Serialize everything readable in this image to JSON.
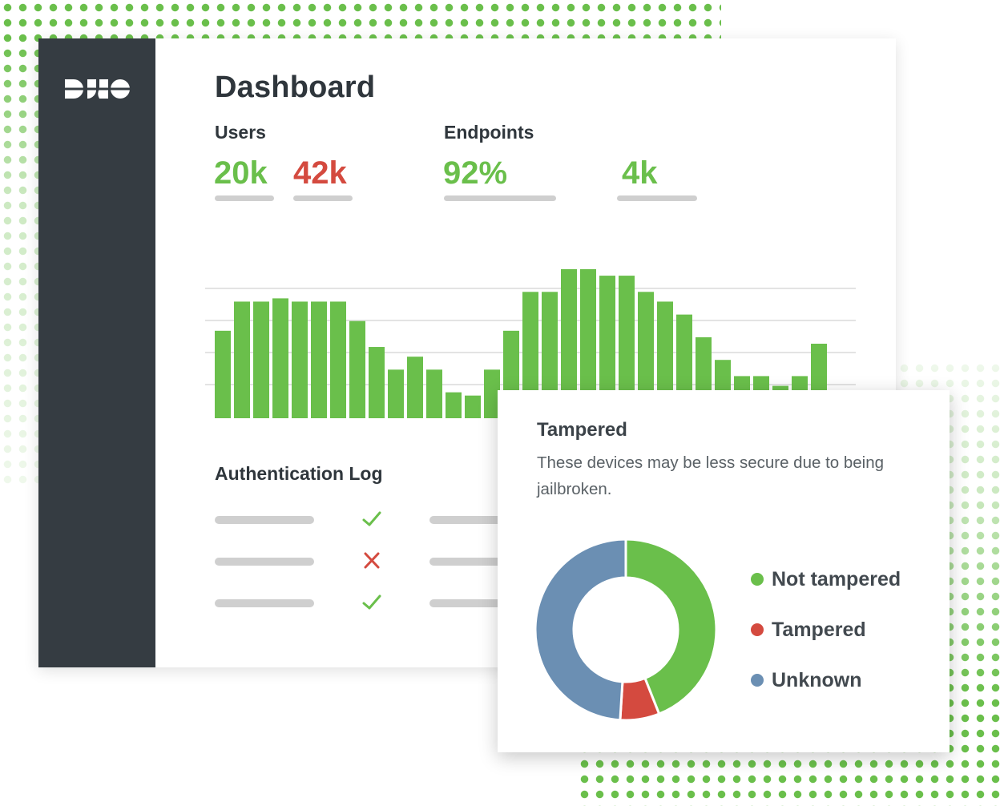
{
  "colors": {
    "green": "#6abf4b",
    "red": "#d44a3f",
    "blue": "#6b8fb3",
    "sidebar": "#353c42",
    "placeholder": "#cfcfcf"
  },
  "logo": {
    "text": "DUO",
    "icon": "duo-logo"
  },
  "dashboard": {
    "title": "Dashboard",
    "users": {
      "label": "Users",
      "value_green": "20k",
      "value_red": "42k"
    },
    "endpoints": {
      "label": "Endpoints",
      "value_primary": "92%",
      "value_secondary": "4k"
    }
  },
  "chart_data": [
    {
      "type": "bar",
      "values": [
        27,
        36,
        36,
        37,
        36,
        36,
        36,
        30,
        22,
        15,
        19,
        15,
        8,
        7,
        15,
        27,
        39,
        39,
        46,
        46,
        44,
        44,
        39,
        36,
        32,
        25,
        18,
        13,
        13,
        10,
        13,
        23
      ],
      "ylim": [
        0,
        46
      ],
      "grid": true
    },
    {
      "type": "pie",
      "labels": [
        "Not tampered",
        "Tampered",
        "Unknown"
      ],
      "values": [
        44,
        7,
        49
      ],
      "colors": [
        "#6abf4b",
        "#d44a3f",
        "#6b8fb3"
      ]
    }
  ],
  "auth_log": {
    "title": "Authentication Log",
    "rows": [
      {
        "status": "success",
        "icon": "check-icon"
      },
      {
        "status": "failure",
        "icon": "x-icon"
      },
      {
        "status": "success",
        "icon": "check-icon"
      }
    ]
  },
  "popup": {
    "title": "Tampered",
    "description": "These devices may be less secure due to being jailbroken.",
    "legend": [
      {
        "label": "Not tampered",
        "color": "#6abf4b"
      },
      {
        "label": "Tampered",
        "color": "#d44a3f"
      },
      {
        "label": "Unknown",
        "color": "#6b8fb3"
      }
    ]
  }
}
